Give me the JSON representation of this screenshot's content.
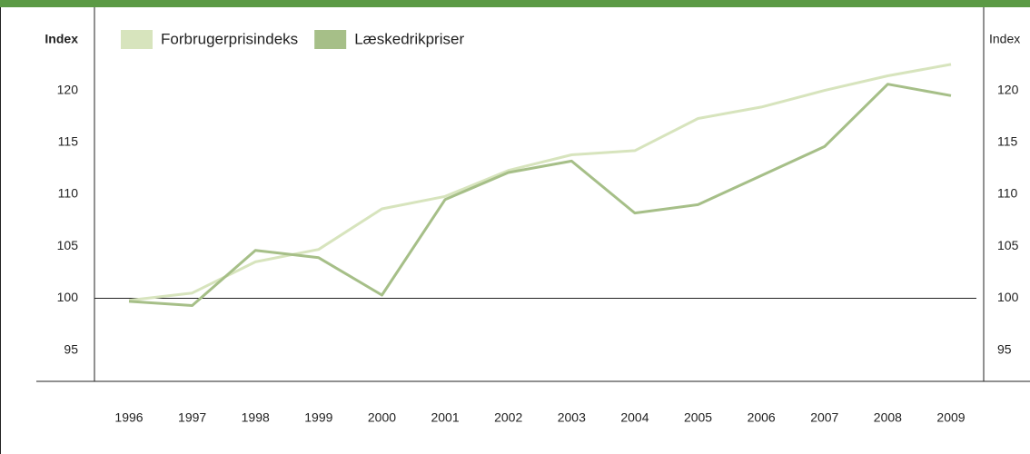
{
  "chart_data": {
    "type": "line",
    "y_label": "Index",
    "y2_label": "Index",
    "categories": [
      "1996",
      "1997",
      "1998",
      "1999",
      "2000",
      "2001",
      "2002",
      "2003",
      "2004",
      "2005",
      "2006",
      "2007",
      "2008",
      "2009"
    ],
    "series": [
      {
        "name": "Forbrugerprisindeks",
        "color": "#d7e4bd",
        "values": [
          99.8,
          100.5,
          103.5,
          104.7,
          108.6,
          109.8,
          112.3,
          113.8,
          114.2,
          117.3,
          118.4,
          120.0,
          121.4,
          122.5
        ]
      },
      {
        "name": "Læskedrikpriser",
        "color": "#a6bf88",
        "values": [
          99.7,
          99.3,
          104.6,
          103.9,
          100.3,
          109.5,
          112.1,
          113.2,
          108.2,
          109.0,
          111.8,
          114.6,
          120.6,
          119.5
        ]
      }
    ],
    "ylim": [
      92,
      128
    ],
    "yticks": [
      95,
      100,
      105,
      110,
      115,
      120
    ],
    "y2lim": [
      92,
      128
    ],
    "y2ticks": [
      95,
      100,
      105,
      110,
      115,
      120
    ],
    "reference_line": 100,
    "legend": "top-left",
    "grid": false
  }
}
